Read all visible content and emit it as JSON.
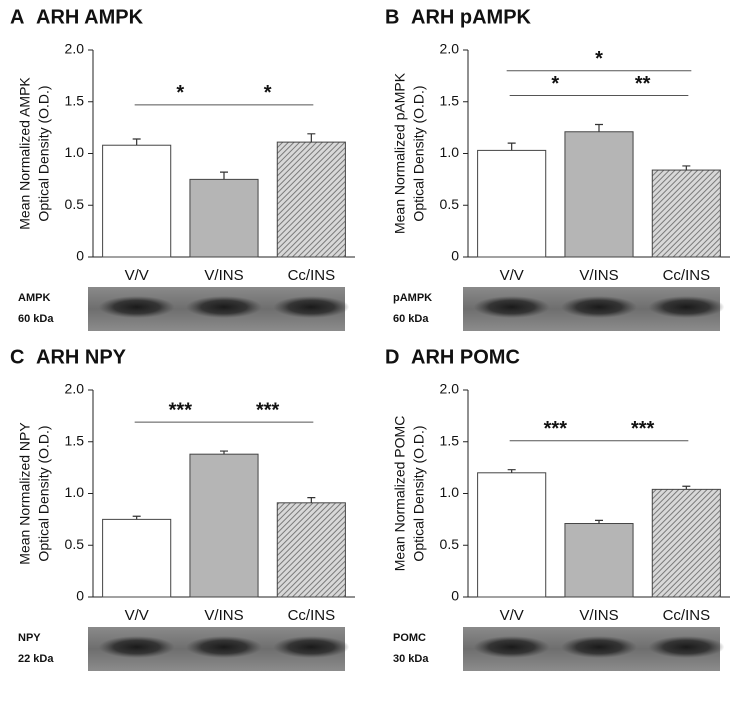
{
  "chart_data": [
    {
      "type": "bar",
      "panel": "A",
      "title": "ARH AMPK",
      "y_label": [
        "Mean Normalized AMPK",
        "Optical Density (O.D.)"
      ],
      "categories": [
        "V/V",
        "V/INS",
        "Cc/INS"
      ],
      "values": [
        1.08,
        0.75,
        1.11
      ],
      "errors": [
        0.06,
        0.07,
        0.08
      ],
      "colors": [
        "#ffffff",
        "#b5b5b5",
        "#8a8a8a"
      ],
      "fills": [
        "solid",
        "solid",
        "hatch"
      ],
      "ylim": [
        0,
        2
      ],
      "yticks": [
        0,
        {
          "value": 0.5,
          "label": "0.5"
        },
        {
          "value": 1,
          "label": "1.0"
        },
        {
          "value": 1.5,
          "label": "1.5"
        },
        {
          "value": 2,
          "label": "2.0"
        }
      ],
      "annotations": [
        {
          "text": "*",
          "between": [
            "V/V",
            "V/INS"
          ]
        },
        {
          "text": "*",
          "between": [
            "V/INS",
            "Cc/INS"
          ]
        }
      ],
      "blot": {
        "label": "AMPK",
        "size": "60 kDa"
      }
    },
    {
      "type": "bar",
      "panel": "B",
      "title": "ARH pAMPK",
      "y_label": [
        "Mean Normalized pAMPK",
        "Optical Density (O.D.)"
      ],
      "categories": [
        "V/V",
        "V/INS",
        "Cc/INS"
      ],
      "values": [
        1.03,
        1.21,
        0.84
      ],
      "errors": [
        0.07,
        0.07,
        0.04
      ],
      "colors": [
        "#ffffff",
        "#b5b5b5",
        "#8a8a8a"
      ],
      "fills": [
        "solid",
        "solid",
        "hatch"
      ],
      "ylim": [
        0,
        2
      ],
      "yticks": [
        0,
        {
          "value": 0.5,
          "label": "0.5"
        },
        {
          "value": 1,
          "label": "1.0"
        },
        {
          "value": 1.5,
          "label": "1.5"
        },
        {
          "value": 2,
          "label": "2.0"
        }
      ],
      "annotations": [
        {
          "text": "*",
          "between": [
            "V/V",
            "Cc/INS"
          ]
        },
        {
          "text": "*",
          "between": [
            "V/V",
            "V/INS"
          ]
        },
        {
          "text": "**",
          "between": [
            "V/INS",
            "Cc/INS"
          ]
        }
      ],
      "blot": {
        "label": "pAMPK",
        "size": "60 kDa"
      }
    },
    {
      "type": "bar",
      "panel": "C",
      "title": "ARH NPY",
      "y_label": [
        "Mean Normalized NPY",
        "Optical Density (O.D.)"
      ],
      "categories": [
        "V/V",
        "V/INS",
        "Cc/INS"
      ],
      "values": [
        0.75,
        1.38,
        0.91
      ],
      "errors": [
        0.03,
        0.03,
        0.05
      ],
      "colors": [
        "#ffffff",
        "#b5b5b5",
        "#8a8a8a"
      ],
      "fills": [
        "solid",
        "solid",
        "hatch"
      ],
      "ylim": [
        0,
        2
      ],
      "yticks": [
        0,
        {
          "value": 0.5,
          "label": "0.5"
        },
        {
          "value": 1,
          "label": "1.0"
        },
        {
          "value": 1.5,
          "label": "1.5"
        },
        {
          "value": 2,
          "label": "2.0"
        }
      ],
      "annotations": [
        {
          "text": "***",
          "between": [
            "V/V",
            "V/INS"
          ]
        },
        {
          "text": "***",
          "between": [
            "V/INS",
            "Cc/INS"
          ]
        }
      ],
      "blot": {
        "label": "NPY",
        "size": "22 kDa"
      }
    },
    {
      "type": "bar",
      "panel": "D",
      "title": "ARH POMC",
      "y_label": [
        "Mean Normalized POMC",
        "Optical Density (O.D.)"
      ],
      "categories": [
        "V/V",
        "V/INS",
        "Cc/INS"
      ],
      "values": [
        1.2,
        0.71,
        1.04
      ],
      "errors": [
        0.03,
        0.03,
        0.03
      ],
      "colors": [
        "#ffffff",
        "#b5b5b5",
        "#8a8a8a"
      ],
      "fills": [
        "solid",
        "solid",
        "hatch"
      ],
      "ylim": [
        0,
        2
      ],
      "yticks": [
        0,
        {
          "value": 0.5,
          "label": "0.5"
        },
        {
          "value": 1,
          "label": "1.0"
        },
        {
          "value": 1.5,
          "label": "1.5"
        },
        {
          "value": 2,
          "label": "2.0"
        }
      ],
      "annotations": [
        {
          "text": "***",
          "between": [
            "V/V",
            "V/INS"
          ]
        },
        {
          "text": "***",
          "between": [
            "V/INS",
            "Cc/INS"
          ]
        }
      ],
      "blot": {
        "label": "POMC",
        "size": "30 kDa"
      }
    }
  ]
}
